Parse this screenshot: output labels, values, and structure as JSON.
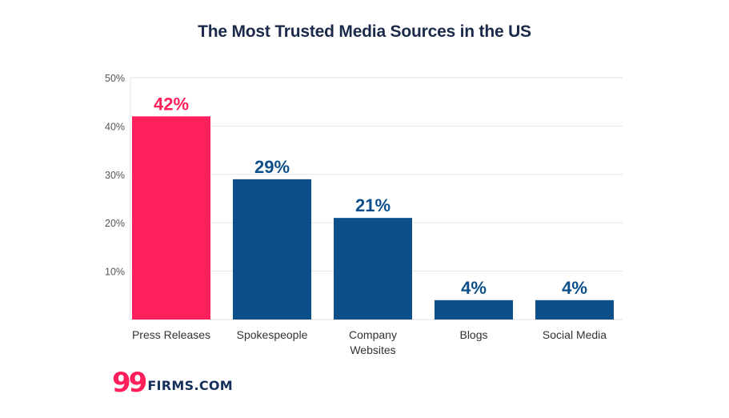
{
  "chart_data": {
    "type": "bar",
    "title": "The Most Trusted Media Sources in the US",
    "categories": [
      "Press Releases",
      "Spokespeople",
      "Company Websites",
      "Blogs",
      "Social Media"
    ],
    "category_lines": [
      [
        "Press Releases"
      ],
      [
        "Spokespeople"
      ],
      [
        "Company",
        "Websites"
      ],
      [
        "Blogs"
      ],
      [
        "Social Media"
      ]
    ],
    "values": [
      42,
      29,
      21,
      4,
      4
    ],
    "value_labels": [
      "42%",
      "29%",
      "21%",
      "4%",
      "4%"
    ],
    "yticks": [
      10,
      20,
      30,
      40,
      50
    ],
    "ytick_labels": [
      "10%",
      "20%",
      "30%",
      "40%",
      "50%"
    ],
    "ylim": [
      0,
      50
    ],
    "grid": true,
    "xlabel": "",
    "ylabel": "",
    "colors": {
      "highlight": "#ff1f5a",
      "bar": "#0d4f8b",
      "grid": "#e3e3e3",
      "axis_text": "#555555",
      "category_text": "#333333"
    },
    "highlight_index": 0
  },
  "brand": {
    "mark": "99",
    "name": "FIRMS.COM"
  }
}
